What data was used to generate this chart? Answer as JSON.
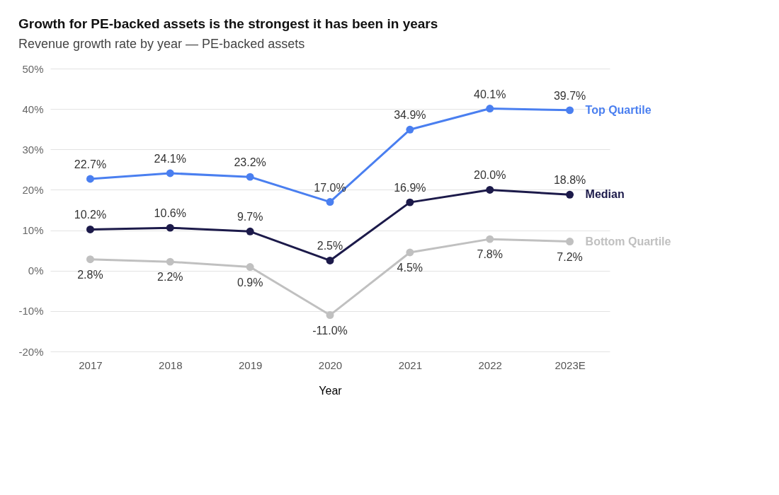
{
  "chart_data": {
    "type": "line",
    "title": "Growth for PE-backed assets is the strongest it has been in years",
    "subtitle": "Revenue growth rate by year — PE-backed assets",
    "xlabel": "Year",
    "categories": [
      "2017",
      "2018",
      "2019",
      "2020",
      "2021",
      "2022",
      "2023E"
    ],
    "series": [
      {
        "name": "Top Quartile",
        "color": "#4a7ff0",
        "values": [
          22.7,
          24.1,
          23.2,
          17.0,
          34.9,
          40.1,
          39.7
        ],
        "value_labels": [
          "22.7%",
          "24.1%",
          "23.2%",
          "17.0%",
          "34.9%",
          "40.1%",
          "39.7%"
        ]
      },
      {
        "name": "Median",
        "color": "#1c1a4a",
        "values": [
          10.2,
          10.6,
          9.7,
          2.5,
          16.9,
          20.0,
          18.8
        ],
        "value_labels": [
          "10.2%",
          "10.6%",
          "9.7%",
          "2.5%",
          "16.9%",
          "20.0%",
          "18.8%"
        ]
      },
      {
        "name": "Bottom Quartile",
        "color": "#c0c0c0",
        "values": [
          2.8,
          2.2,
          0.9,
          -11.0,
          4.5,
          7.8,
          7.2
        ],
        "value_labels": [
          "2.8%",
          "2.2%",
          "0.9%",
          "-11.0%",
          "4.5%",
          "7.8%",
          "7.2%"
        ]
      }
    ],
    "ylim": [
      -20,
      50
    ],
    "yticks": [
      {
        "value": -20,
        "label": "-20%"
      },
      {
        "value": -10,
        "label": "-10%"
      },
      {
        "value": 0,
        "label": "0%"
      },
      {
        "value": 10,
        "label": "10%"
      },
      {
        "value": 20,
        "label": "20%"
      },
      {
        "value": 30,
        "label": "30%"
      },
      {
        "value": 40,
        "label": "40%"
      },
      {
        "value": 50,
        "label": "50%"
      }
    ],
    "grid": "y",
    "legend": false,
    "marker": "circle",
    "line_style": "solid"
  }
}
